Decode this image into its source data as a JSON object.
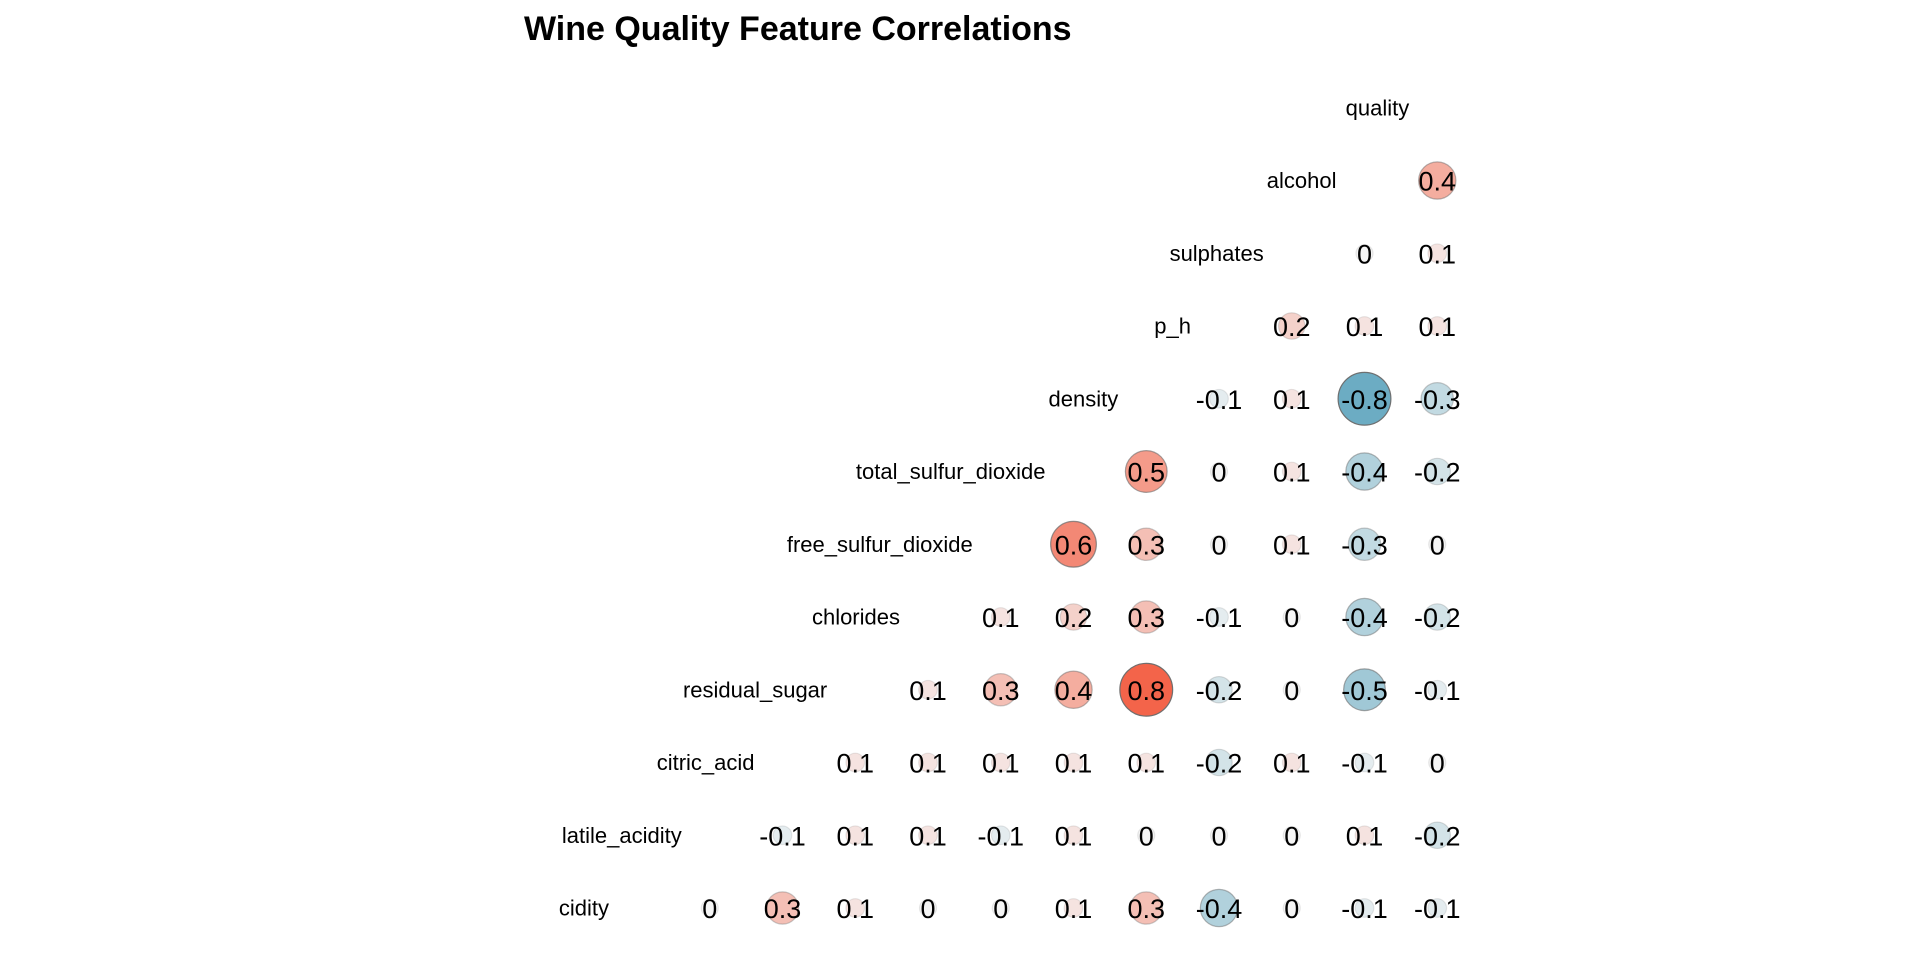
{
  "chart_data": {
    "type": "heatmap",
    "title": "Wine Quality Feature Correlations",
    "variables": [
      "fixed_acidity",
      "volatile_acidity",
      "citric_acid",
      "residual_sugar",
      "chlorides",
      "free_sulfur_dioxide",
      "total_sulfur_dioxide",
      "density",
      "p_h",
      "sulphates",
      "alcohol",
      "quality"
    ],
    "row_label_texts": [
      "cidity",
      "latile_acidity",
      "citric_acid",
      "residual_sugar",
      "chlorides",
      "free_sulfur_dioxide",
      "total_sulfur_dioxide",
      "density",
      "p_h",
      "sulphates",
      "alcohol",
      "quality"
    ],
    "value_range": [
      -1,
      1
    ],
    "colors": {
      "negative": "#4a9ab6",
      "neutral": "#f5f5f5",
      "positive": "#f2401f"
    },
    "correlations": [
      [
        0,
        0.3,
        0.1,
        0,
        0,
        0.1,
        0.3,
        -0.4,
        0,
        -0.1,
        -0.1
      ],
      [
        -0.1,
        0.1,
        0.1,
        -0.1,
        0.1,
        0,
        0,
        0,
        0.1,
        -0.2
      ],
      [
        0.1,
        0.1,
        0.1,
        0.1,
        0.1,
        -0.2,
        0.1,
        -0.1,
        0
      ],
      [
        0.1,
        0.3,
        0.4,
        0.8,
        -0.2,
        0,
        -0.5,
        -0.1
      ],
      [
        0.1,
        0.2,
        0.3,
        -0.1,
        0,
        -0.4,
        -0.2
      ],
      [
        0.6,
        0.3,
        0,
        0.1,
        -0.3,
        0
      ],
      [
        0.5,
        0,
        0.1,
        -0.4,
        -0.2
      ],
      [
        -0.1,
        0.1,
        -0.8,
        -0.3
      ],
      [
        0.2,
        0.1,
        0.1
      ],
      [
        0,
        0.1
      ],
      [
        0.4
      ],
      []
    ]
  }
}
